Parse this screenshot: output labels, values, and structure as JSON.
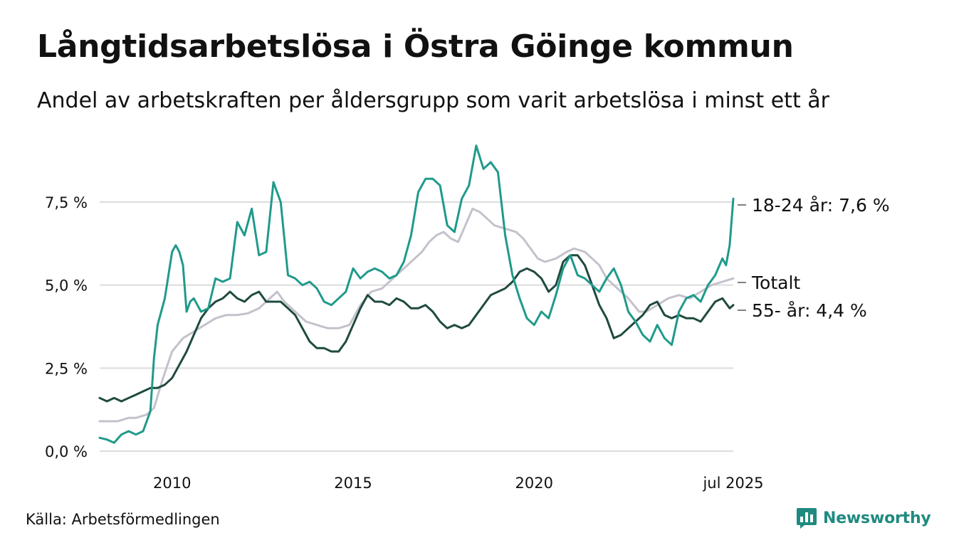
{
  "title": "Långtidsarbetslösa i Östra Göinge kommun",
  "subtitle": "Andel av arbetskraften per åldersgrupp som varit arbetslösa i minst ett år",
  "source": "Källa: Arbetsförmedlingen",
  "brand": "Newsworthy",
  "colors": {
    "teal": "#1f9a8a",
    "dark": "#1f4a3f",
    "gray": "#c4c1cc",
    "grid": "#dcdcdc",
    "brand": "#1f8a80"
  },
  "chart_data": {
    "type": "line",
    "xlim": [
      2008.0,
      2025.5
    ],
    "ylim": [
      0,
      9.3
    ],
    "y_ticks": [
      0,
      2.5,
      5.0,
      7.5
    ],
    "y_tick_labels": [
      "0,0 %",
      "2,5 %",
      "5,0 %",
      "7,5 %"
    ],
    "x_ticks": [
      2010,
      2015,
      2020,
      2025.5
    ],
    "x_tick_labels": [
      "2010",
      "2015",
      "2020",
      "jul 2025"
    ],
    "grid": "horizontal",
    "series": [
      {
        "name": "Totalt",
        "color": "#c4c1cc",
        "end_label": "Totalt",
        "points": [
          [
            2008.0,
            0.9
          ],
          [
            2008.5,
            0.9
          ],
          [
            2008.8,
            1.0
          ],
          [
            2009.0,
            1.0
          ],
          [
            2009.3,
            1.1
          ],
          [
            2009.5,
            1.3
          ],
          [
            2009.75,
            2.2
          ],
          [
            2010.0,
            3.0
          ],
          [
            2010.3,
            3.4
          ],
          [
            2010.6,
            3.6
          ],
          [
            2010.9,
            3.8
          ],
          [
            2011.2,
            4.0
          ],
          [
            2011.5,
            4.1
          ],
          [
            2011.8,
            4.1
          ],
          [
            2012.1,
            4.15
          ],
          [
            2012.4,
            4.3
          ],
          [
            2012.7,
            4.6
          ],
          [
            2012.9,
            4.8
          ],
          [
            2013.1,
            4.5
          ],
          [
            2013.4,
            4.2
          ],
          [
            2013.7,
            3.9
          ],
          [
            2014.0,
            3.8
          ],
          [
            2014.3,
            3.7
          ],
          [
            2014.6,
            3.7
          ],
          [
            2014.9,
            3.8
          ],
          [
            2015.2,
            4.4
          ],
          [
            2015.5,
            4.8
          ],
          [
            2015.8,
            4.9
          ],
          [
            2016.1,
            5.2
          ],
          [
            2016.4,
            5.5
          ],
          [
            2016.7,
            5.8
          ],
          [
            2016.9,
            6.0
          ],
          [
            2017.1,
            6.3
          ],
          [
            2017.3,
            6.5
          ],
          [
            2017.5,
            6.6
          ],
          [
            2017.7,
            6.4
          ],
          [
            2017.9,
            6.3
          ],
          [
            2018.1,
            6.8
          ],
          [
            2018.3,
            7.3
          ],
          [
            2018.5,
            7.2
          ],
          [
            2018.7,
            7.0
          ],
          [
            2018.9,
            6.8
          ],
          [
            2019.2,
            6.7
          ],
          [
            2019.5,
            6.6
          ],
          [
            2019.7,
            6.4
          ],
          [
            2019.9,
            6.1
          ],
          [
            2020.1,
            5.8
          ],
          [
            2020.3,
            5.7
          ],
          [
            2020.6,
            5.8
          ],
          [
            2020.9,
            6.0
          ],
          [
            2021.1,
            6.1
          ],
          [
            2021.4,
            6.0
          ],
          [
            2021.6,
            5.8
          ],
          [
            2021.8,
            5.6
          ],
          [
            2022.0,
            5.2
          ],
          [
            2022.3,
            4.9
          ],
          [
            2022.6,
            4.6
          ],
          [
            2022.9,
            4.2
          ],
          [
            2023.1,
            4.2
          ],
          [
            2023.4,
            4.4
          ],
          [
            2023.7,
            4.6
          ],
          [
            2024.0,
            4.7
          ],
          [
            2024.3,
            4.6
          ],
          [
            2024.6,
            4.8
          ],
          [
            2024.9,
            5.0
          ],
          [
            2025.2,
            5.1
          ],
          [
            2025.5,
            5.2
          ]
        ]
      },
      {
        "name": "55- år",
        "color": "#1f4a3f",
        "end_label": "55- år: 4,4 %",
        "points": [
          [
            2008.0,
            1.6
          ],
          [
            2008.2,
            1.5
          ],
          [
            2008.4,
            1.6
          ],
          [
            2008.6,
            1.5
          ],
          [
            2008.8,
            1.6
          ],
          [
            2009.0,
            1.7
          ],
          [
            2009.2,
            1.8
          ],
          [
            2009.4,
            1.9
          ],
          [
            2009.6,
            1.9
          ],
          [
            2009.8,
            2.0
          ],
          [
            2010.0,
            2.2
          ],
          [
            2010.2,
            2.6
          ],
          [
            2010.4,
            3.0
          ],
          [
            2010.6,
            3.5
          ],
          [
            2010.8,
            4.0
          ],
          [
            2011.0,
            4.3
          ],
          [
            2011.2,
            4.5
          ],
          [
            2011.4,
            4.6
          ],
          [
            2011.6,
            4.8
          ],
          [
            2011.8,
            4.6
          ],
          [
            2012.0,
            4.5
          ],
          [
            2012.2,
            4.7
          ],
          [
            2012.4,
            4.8
          ],
          [
            2012.6,
            4.5
          ],
          [
            2012.8,
            4.5
          ],
          [
            2013.0,
            4.5
          ],
          [
            2013.2,
            4.3
          ],
          [
            2013.4,
            4.1
          ],
          [
            2013.6,
            3.7
          ],
          [
            2013.8,
            3.3
          ],
          [
            2014.0,
            3.1
          ],
          [
            2014.2,
            3.1
          ],
          [
            2014.4,
            3.0
          ],
          [
            2014.6,
            3.0
          ],
          [
            2014.8,
            3.3
          ],
          [
            2015.0,
            3.8
          ],
          [
            2015.2,
            4.3
          ],
          [
            2015.4,
            4.7
          ],
          [
            2015.6,
            4.5
          ],
          [
            2015.8,
            4.5
          ],
          [
            2016.0,
            4.4
          ],
          [
            2016.2,
            4.6
          ],
          [
            2016.4,
            4.5
          ],
          [
            2016.6,
            4.3
          ],
          [
            2016.8,
            4.3
          ],
          [
            2017.0,
            4.4
          ],
          [
            2017.2,
            4.2
          ],
          [
            2017.4,
            3.9
          ],
          [
            2017.6,
            3.7
          ],
          [
            2017.8,
            3.8
          ],
          [
            2018.0,
            3.7
          ],
          [
            2018.2,
            3.8
          ],
          [
            2018.4,
            4.1
          ],
          [
            2018.6,
            4.4
          ],
          [
            2018.8,
            4.7
          ],
          [
            2019.0,
            4.8
          ],
          [
            2019.2,
            4.9
          ],
          [
            2019.4,
            5.1
          ],
          [
            2019.6,
            5.4
          ],
          [
            2019.8,
            5.5
          ],
          [
            2020.0,
            5.4
          ],
          [
            2020.2,
            5.2
          ],
          [
            2020.4,
            4.8
          ],
          [
            2020.6,
            5.0
          ],
          [
            2020.8,
            5.7
          ],
          [
            2021.0,
            5.9
          ],
          [
            2021.2,
            5.9
          ],
          [
            2021.4,
            5.6
          ],
          [
            2021.6,
            5.0
          ],
          [
            2021.8,
            4.4
          ],
          [
            2022.0,
            4.0
          ],
          [
            2022.2,
            3.4
          ],
          [
            2022.4,
            3.5
          ],
          [
            2022.6,
            3.7
          ],
          [
            2022.8,
            3.9
          ],
          [
            2023.0,
            4.1
          ],
          [
            2023.2,
            4.4
          ],
          [
            2023.4,
            4.5
          ],
          [
            2023.6,
            4.1
          ],
          [
            2023.8,
            4.0
          ],
          [
            2024.0,
            4.1
          ],
          [
            2024.2,
            4.0
          ],
          [
            2024.4,
            4.0
          ],
          [
            2024.6,
            3.9
          ],
          [
            2024.8,
            4.2
          ],
          [
            2025.0,
            4.5
          ],
          [
            2025.2,
            4.6
          ],
          [
            2025.4,
            4.3
          ],
          [
            2025.5,
            4.4
          ]
        ]
      },
      {
        "name": "18-24 år",
        "color": "#1f9a8a",
        "end_label": "18-24 år: 7,6 %",
        "points": [
          [
            2008.0,
            0.4
          ],
          [
            2008.2,
            0.35
          ],
          [
            2008.4,
            0.25
          ],
          [
            2008.6,
            0.5
          ],
          [
            2008.8,
            0.6
          ],
          [
            2009.0,
            0.5
          ],
          [
            2009.2,
            0.6
          ],
          [
            2009.4,
            1.2
          ],
          [
            2009.5,
            2.8
          ],
          [
            2009.6,
            3.8
          ],
          [
            2009.8,
            4.6
          ],
          [
            2010.0,
            6.0
          ],
          [
            2010.1,
            6.2
          ],
          [
            2010.2,
            6.0
          ],
          [
            2010.3,
            5.6
          ],
          [
            2010.4,
            4.2
          ],
          [
            2010.5,
            4.5
          ],
          [
            2010.6,
            4.6
          ],
          [
            2010.8,
            4.2
          ],
          [
            2011.0,
            4.3
          ],
          [
            2011.2,
            5.2
          ],
          [
            2011.4,
            5.1
          ],
          [
            2011.6,
            5.2
          ],
          [
            2011.8,
            6.9
          ],
          [
            2012.0,
            6.5
          ],
          [
            2012.2,
            7.3
          ],
          [
            2012.4,
            5.9
          ],
          [
            2012.6,
            6.0
          ],
          [
            2012.8,
            8.1
          ],
          [
            2013.0,
            7.5
          ],
          [
            2013.2,
            5.3
          ],
          [
            2013.4,
            5.2
          ],
          [
            2013.6,
            5.0
          ],
          [
            2013.8,
            5.1
          ],
          [
            2014.0,
            4.9
          ],
          [
            2014.2,
            4.5
          ],
          [
            2014.4,
            4.4
          ],
          [
            2014.6,
            4.6
          ],
          [
            2014.8,
            4.8
          ],
          [
            2015.0,
            5.5
          ],
          [
            2015.2,
            5.2
          ],
          [
            2015.4,
            5.4
          ],
          [
            2015.6,
            5.5
          ],
          [
            2015.8,
            5.4
          ],
          [
            2016.0,
            5.2
          ],
          [
            2016.2,
            5.3
          ],
          [
            2016.4,
            5.7
          ],
          [
            2016.6,
            6.5
          ],
          [
            2016.8,
            7.8
          ],
          [
            2017.0,
            8.2
          ],
          [
            2017.2,
            8.2
          ],
          [
            2017.4,
            8.0
          ],
          [
            2017.6,
            6.8
          ],
          [
            2017.8,
            6.6
          ],
          [
            2018.0,
            7.6
          ],
          [
            2018.2,
            8.0
          ],
          [
            2018.4,
            9.2
          ],
          [
            2018.6,
            8.5
          ],
          [
            2018.8,
            8.7
          ],
          [
            2019.0,
            8.4
          ],
          [
            2019.2,
            6.5
          ],
          [
            2019.4,
            5.3
          ],
          [
            2019.6,
            4.6
          ],
          [
            2019.8,
            4.0
          ],
          [
            2020.0,
            3.8
          ],
          [
            2020.2,
            4.2
          ],
          [
            2020.4,
            4.0
          ],
          [
            2020.6,
            4.7
          ],
          [
            2020.8,
            5.5
          ],
          [
            2021.0,
            5.9
          ],
          [
            2021.2,
            5.3
          ],
          [
            2021.4,
            5.2
          ],
          [
            2021.6,
            5.0
          ],
          [
            2021.8,
            4.8
          ],
          [
            2022.0,
            5.2
          ],
          [
            2022.2,
            5.5
          ],
          [
            2022.4,
            5.0
          ],
          [
            2022.6,
            4.2
          ],
          [
            2022.8,
            3.9
          ],
          [
            2023.0,
            3.5
          ],
          [
            2023.2,
            3.3
          ],
          [
            2023.4,
            3.8
          ],
          [
            2023.6,
            3.4
          ],
          [
            2023.8,
            3.2
          ],
          [
            2024.0,
            4.2
          ],
          [
            2024.2,
            4.6
          ],
          [
            2024.4,
            4.7
          ],
          [
            2024.6,
            4.5
          ],
          [
            2024.8,
            5.0
          ],
          [
            2025.0,
            5.3
          ],
          [
            2025.2,
            5.8
          ],
          [
            2025.3,
            5.6
          ],
          [
            2025.4,
            6.2
          ],
          [
            2025.5,
            7.6
          ]
        ]
      }
    ]
  }
}
